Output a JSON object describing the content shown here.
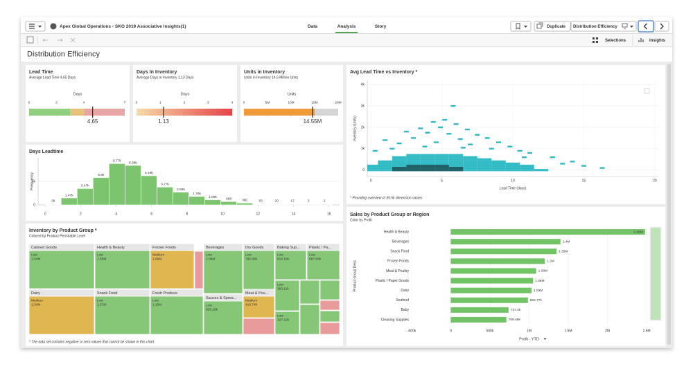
{
  "header": {
    "app_title": "Apex Global Operations - SKO 2019 Associative Insights(1)",
    "tabs": [
      "Data",
      "Analysis",
      "Story"
    ],
    "active_tab": 1,
    "duplicate": "Duplicate",
    "sheet_selector": "Distribution Efficiency"
  },
  "toolbar": {
    "selections": "Selections",
    "insights": "Insights"
  },
  "sheet_title": "Distribution Efficiency",
  "chart_data": [
    {
      "type": "gauge",
      "title": "Lead Time",
      "subtitle": "Average Lead Time 4.65 Days",
      "axis_label": "Days",
      "xlim": [
        0,
        7
      ],
      "xticks": [
        0,
        2,
        4,
        7
      ],
      "bands": [
        {
          "from": 0,
          "to": 3,
          "color": "#8fcf7f"
        },
        {
          "from": 3,
          "to": 4,
          "color": "#e6c27c"
        },
        {
          "from": 4,
          "to": 7,
          "color": "#e9a4a4"
        }
      ],
      "value": 4.65
    },
    {
      "type": "gauge",
      "title": "Days In Inventory",
      "subtitle": "Average Days in Inventory 1.13 Days",
      "axis_label": "Days",
      "xlim": [
        0,
        4
      ],
      "xticks": [
        0,
        1,
        2,
        3,
        4
      ],
      "gradient": [
        "#f6dba8",
        "#e6434b"
      ],
      "value": 1.13
    },
    {
      "type": "gauge",
      "title": "Units in Inventory",
      "subtitle": "Units in Inventory 14.6 Million Units",
      "axis_label": "Units",
      "xlim": [
        0,
        20000000
      ],
      "xticks": [
        0,
        {
          "value": 5000000,
          "label": "5M"
        },
        {
          "value": 10000000,
          "label": "10M"
        },
        {
          "value": 15000000,
          "label": "15M"
        },
        {
          "value": 20000000,
          "label": "20M"
        }
      ],
      "bands": [
        {
          "from": 0,
          "to": 15000000,
          "color": "#ef9b3a"
        },
        {
          "from": 15000000,
          "to": 20000000,
          "color": "#d6d6d6"
        }
      ],
      "value": 14550000,
      "value_label": "14.55M"
    },
    {
      "type": "histogram",
      "title": "Days Leadtime",
      "y_label": "Frequency",
      "color": "#7cc46e",
      "bins": [
        0,
        0.9,
        1.8,
        2.7,
        3.6,
        4.5,
        5.4,
        6.3,
        7.2,
        8.1,
        9,
        9.9,
        10.8,
        11.7,
        12.6,
        13.5,
        14.4,
        15.3,
        16.2
      ],
      "values": [
        38,
        1470,
        3470,
        5800,
        8770,
        8380,
        6180,
        3770,
        2690,
        1780,
        1090,
        698,
        380,
        83,
        20,
        17,
        3,
        2
      ],
      "value_labels": [
        "38",
        "1.47k",
        "3.47k",
        "5.8k",
        "8.77k",
        "8.38k",
        "6.18k",
        "3.77k",
        "2.69k",
        "1.78k",
        "1.09k",
        "698",
        "380",
        "83",
        "20",
        "17",
        "3",
        "2"
      ],
      "xlim": [
        -0.4,
        16.6
      ],
      "xticks": [
        0,
        2,
        4,
        6,
        8,
        10,
        12,
        14,
        16
      ],
      "ylim": [
        0,
        10000
      ],
      "yticks": [
        0,
        {
          "value": 5000,
          "label": "5k"
        }
      ],
      "grid": true
    },
    {
      "type": "scatter",
      "title": "Avg Lead Time vs Inventory *",
      "x_label": "Lead Time (days)",
      "y_label": "Inventory (Units)",
      "footnote": "* Providing overview of 39.5k dimension values",
      "xlim": [
        -0.25,
        20.25
      ],
      "xticks": [
        0,
        5,
        10,
        15,
        20
      ],
      "ylim": [
        -300,
        4200
      ],
      "yticks": [
        0,
        {
          "value": 1000,
          "label": "1k"
        },
        {
          "value": 2000,
          "label": "2k"
        },
        {
          "value": 3000,
          "label": "3k"
        },
        {
          "value": 4000,
          "label": "4k"
        }
      ],
      "grid": true,
      "series": [
        {
          "color": "#33bcc6",
          "x": [
            0,
            1,
            2,
            3,
            4,
            5,
            6,
            7,
            8,
            9,
            10,
            11,
            12,
            0,
            1,
            2,
            3,
            4,
            5,
            6,
            7,
            8,
            9,
            10,
            11,
            0,
            1,
            2,
            3,
            4,
            5,
            6,
            7,
            8,
            9,
            10,
            11,
            1,
            2,
            3,
            4,
            5,
            6,
            7,
            8,
            9,
            10,
            1,
            2,
            3,
            4,
            5,
            6,
            7,
            8,
            9,
            2,
            3,
            4,
            5,
            6,
            7,
            8,
            2,
            3,
            4,
            5,
            6,
            7,
            3,
            4,
            5,
            6
          ],
          "values": [
            0,
            0,
            0,
            0,
            0,
            0,
            0,
            0,
            0,
            0,
            0,
            0,
            0,
            100,
            100,
            100,
            100,
            100,
            100,
            100,
            100,
            100,
            100,
            100,
            100,
            200,
            200,
            200,
            200,
            200,
            200,
            200,
            200,
            200,
            200,
            200,
            200,
            300,
            300,
            300,
            300,
            300,
            300,
            300,
            300,
            300,
            300,
            400,
            400,
            400,
            400,
            400,
            400,
            400,
            400,
            400,
            500,
            500,
            500,
            500,
            500,
            500,
            500,
            600,
            600,
            600,
            600,
            600,
            600,
            700,
            700,
            700,
            700
          ]
        },
        {
          "color": "#1d4a50",
          "x": [
            2,
            3,
            4,
            5,
            6,
            2,
            3,
            4,
            5,
            6,
            3,
            4,
            5
          ],
          "values": [
            0,
            0,
            0,
            0,
            0,
            100,
            100,
            100,
            100,
            100,
            200,
            200,
            200
          ]
        },
        {
          "color": "#2fb8c2",
          "x": [
            5.8,
            4.4,
            5.2,
            6.0,
            3.5,
            4.9,
            6.8,
            2.5,
            4.0,
            5.5,
            7.5,
            8.2,
            3.0,
            6.3,
            9.0,
            2.0,
            7.0,
            9.8,
            4.6,
            1.5,
            8.5,
            10.5,
            11.2,
            6.5,
            3.8,
            12.8,
            13.5,
            15.0,
            16.3,
            14.2,
            10.8,
            0.3,
            1.0
          ],
          "values": [
            3000,
            2250,
            2350,
            2150,
            1950,
            2000,
            1900,
            1800,
            1750,
            1700,
            1650,
            1500,
            1500,
            1450,
            1300,
            1250,
            1200,
            1100,
            1300,
            1000,
            1000,
            900,
            800,
            1050,
            1100,
            600,
            300,
            200,
            100,
            400,
            600,
            900,
            1400
          ]
        }
      ]
    },
    {
      "type": "treemap",
      "title": "Inventory by Product Group *",
      "subtitle": "Colored by Product Perishable Level",
      "footnote": "* The data set contains negative or zero values that cannot be shown in this chart.",
      "tiles": [
        {
          "name": "Canned Goods",
          "level": "Low",
          "value": 1540000,
          "value_label": "1.54M",
          "color": "#86c677"
        },
        {
          "name": "Health & Beauty",
          "level": "Low",
          "value": 1550000,
          "value_label": "1.55M",
          "color": "#86c677"
        },
        {
          "name": "Frozen Foods",
          "level": "Medium",
          "value": 1860000,
          "value_label": "1.86M",
          "color": "#e0b650"
        },
        {
          "name": "Beverages",
          "level": "Low",
          "value": 1060000,
          "value_label": "1.06M",
          "color": "#86c677"
        },
        {
          "name": "Dry Goods",
          "level": "Low",
          "value": 782690,
          "value_label": "782.69k",
          "color": "#86c677"
        },
        {
          "name": "Baking Sup...",
          "level": "Low",
          "value": 816190,
          "value_label": "816.19k",
          "color": "#86c677"
        },
        {
          "name": "Plastic / Pa...",
          "level": "Low",
          "value": 687600,
          "value_label": "687.60k",
          "color": "#86c677"
        },
        {
          "name": "Dairy",
          "level": "Medium",
          "value": 1340000,
          "value_label": "1.34M",
          "color": "#e0b650"
        },
        {
          "name": "Snack Food",
          "level": "Low",
          "value": 1270000,
          "value_label": "1.27M",
          "color": "#86c677"
        },
        {
          "name": "Fresh Produce",
          "level": "Low",
          "value": 1150000,
          "value_label": "1.15M",
          "color": "#86c677"
        },
        {
          "name": "Sauces & Sprea...",
          "level": "Low",
          "value": 828160,
          "value_label": "828.16k",
          "color": "#86c677"
        },
        {
          "name": "Meat & Pou...",
          "level": "Medium",
          "value": 410740,
          "value_label": "410.74k",
          "color": "#e0b650"
        },
        {
          "name": null,
          "level": "Low",
          "value": 383110,
          "value_label": "383.11k",
          "color": "#86c677"
        },
        {
          "name": null,
          "level": "Low",
          "value": 327120,
          "value_label": "327.12k",
          "color": "#86c677"
        },
        {
          "name": null,
          "level": null,
          "value": 90000,
          "value_label": null,
          "color": "#e99a9a"
        },
        {
          "name": null,
          "level": null,
          "value": 150000,
          "value_label": null,
          "color": "#e99a9a"
        },
        {
          "name": null,
          "level": null,
          "value": 120000,
          "value_label": null,
          "color": "#86c677"
        },
        {
          "name": null,
          "level": null,
          "value": 100000,
          "value_label": null,
          "color": "#86c677"
        },
        {
          "name": null,
          "level": null,
          "value": 60000,
          "value_label": null,
          "color": "#e99a9a"
        },
        {
          "name": null,
          "level": null,
          "value": 110000,
          "value_label": null,
          "color": "#86c677"
        },
        {
          "name": null,
          "level": null,
          "value": 70000,
          "value_label": null,
          "color": "#86c677"
        },
        {
          "name": null,
          "level": null,
          "value": 60000,
          "value_label": null,
          "color": "#e99a9a"
        }
      ]
    },
    {
      "type": "bar",
      "orientation": "horizontal",
      "title": "Sales by Product Group or Region",
      "subtitle": "Color by Profit",
      "y_label": "Product Group Desc",
      "x_label": "Profit - YTD",
      "color": "#72c266",
      "categories": [
        "Health & Beauty",
        "Beverages",
        "Snack Food",
        "Frozen Foods",
        "Meat & Poultry",
        "Plastic / Paper Goods",
        "Dairy",
        "Seafood",
        "Baby",
        "Cleaning Supplies"
      ],
      "values": [
        2480000,
        1400000,
        1350000,
        1200000,
        1090000,
        1050000,
        1030000,
        984770,
        737400,
        709490
      ],
      "value_labels": [
        "2.48M",
        "1.4M",
        "1.35M",
        "1.2M",
        "1.09M",
        "1.05M",
        "1.03M",
        "984.77k",
        "737.4k",
        "709.49k"
      ],
      "xlim": [
        -500000,
        2500000
      ],
      "xticks": [
        {
          "value": -500000,
          "label": "-500k"
        },
        0,
        {
          "value": 500000,
          "label": "500k"
        },
        {
          "value": 1000000,
          "label": "1M"
        },
        {
          "value": 1500000,
          "label": "1.5M"
        },
        {
          "value": 2000000,
          "label": "2M"
        },
        {
          "value": 2500000,
          "label": "2.5M"
        }
      ],
      "grid": true
    }
  ]
}
